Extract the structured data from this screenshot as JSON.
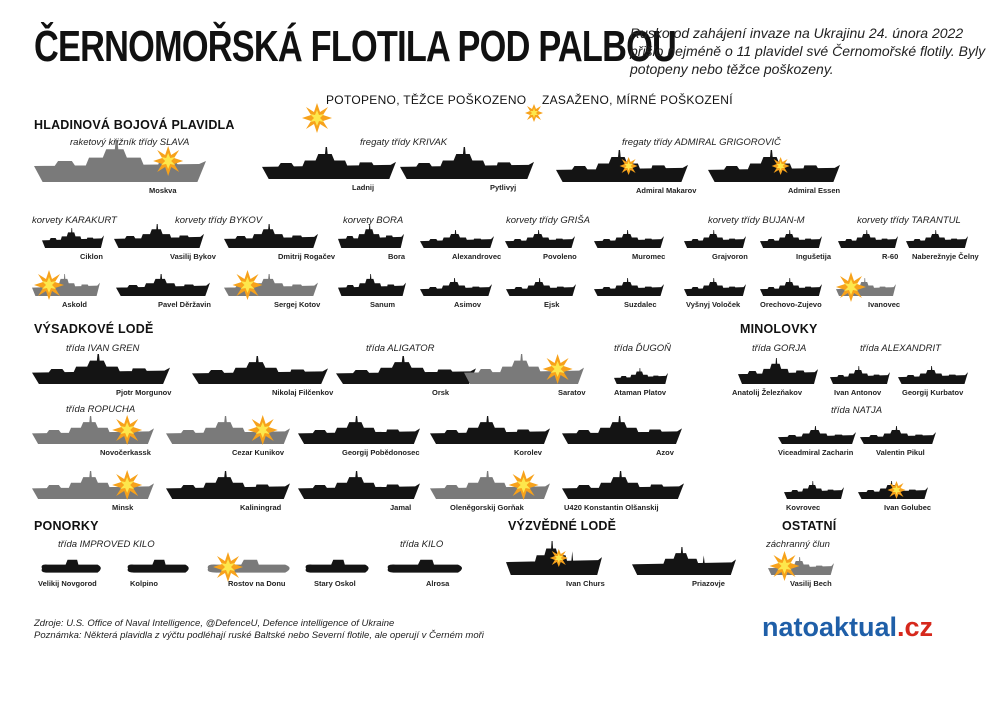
{
  "title": "ČERNOMOŘSKÁ FLOTILA POD PALBOU",
  "intro": "Rusko od zahájení invaze na Ukrajinu 24. února 2022 přišlo nejméně o 11 plavidel své Černomořské flotily. Byly potopeny nebo těžce poškozeny.",
  "legend": {
    "sunk": "POTOPENO, TĚŽCE POŠKOZENO",
    "hit": "ZASAŽENO, MÍRNÉ POŠKOZENÍ"
  },
  "sections": {
    "surface": "HLADINOVÁ BOJOVÁ PLAVIDLA",
    "landing": "VÝSADKOVÉ LODĚ",
    "mine": "MINOLOVKY",
    "subs": "PONORKY",
    "recon": "VÝZVĚDNÉ LODĚ",
    "other": "OSTATNÍ"
  },
  "classes": {
    "slava": "raketový křižník třídy SLAVA",
    "krivak": "fregaty třídy KRIVAK",
    "grigorovic": "fregaty třídy ADMIRAL GRIGOROVIČ",
    "karakurt": "korvety KARAKURT",
    "bykov": "korvety třídy BYKOV",
    "bora": "korvety BORA",
    "grisa": "korvety třídy GRIŠA",
    "bujan": "korvety třídy BUJAN-M",
    "tarantul": "korvety třídy TARANTUL",
    "gren": "třída IVAN GREN",
    "aligator": "třída ALIGATOR",
    "dugon": "třída ĎUGOŇ",
    "ropucha": "třída ROPUCHA",
    "gorja": "třída GORJA",
    "alexandrit": "třída ALEXANDRIT",
    "natja": "třída NATJA",
    "kilo_imp": "třída IMPROVED KILO",
    "kilo": "třída KILO",
    "rescue": "záchranný člun"
  },
  "ships": [
    {
      "name": "Moskva",
      "status": "sunk"
    },
    {
      "name": "Ladnij",
      "status": "none"
    },
    {
      "name": "Pytlivyj",
      "status": "none"
    },
    {
      "name": "Admiral Makarov",
      "status": "hit"
    },
    {
      "name": "Admiral Essen",
      "status": "hit"
    },
    {
      "name": "Ciklon",
      "status": "none"
    },
    {
      "name": "Vasilij Bykov",
      "status": "none"
    },
    {
      "name": "Dmitrij Rogačev",
      "status": "none"
    },
    {
      "name": "Bora",
      "status": "none"
    },
    {
      "name": "Alexandrovec",
      "status": "none"
    },
    {
      "name": "Povoleno",
      "status": "none"
    },
    {
      "name": "Muromec",
      "status": "none"
    },
    {
      "name": "Grajvoron",
      "status": "none"
    },
    {
      "name": "Ingušetija",
      "status": "none"
    },
    {
      "name": "R-60",
      "status": "none"
    },
    {
      "name": "Naberežnyje Čelny",
      "status": "none"
    },
    {
      "name": "Askold",
      "status": "sunk"
    },
    {
      "name": "Pavel Děržavin",
      "status": "none"
    },
    {
      "name": "Sergej Kotov",
      "status": "sunk"
    },
    {
      "name": "Sanum",
      "status": "none"
    },
    {
      "name": "Asimov",
      "status": "none"
    },
    {
      "name": "Ejsk",
      "status": "none"
    },
    {
      "name": "Suzdalec",
      "status": "none"
    },
    {
      "name": "Vyšnyj Voloček",
      "status": "none"
    },
    {
      "name": "Orechovo-Zujevo",
      "status": "none"
    },
    {
      "name": "Ivanovec",
      "status": "sunk"
    },
    {
      "name": "Pjotr Morgunov",
      "status": "none"
    },
    {
      "name": "Nikolaj Filčenkov",
      "status": "none"
    },
    {
      "name": "Orsk",
      "status": "none"
    },
    {
      "name": "Saratov",
      "status": "sunk"
    },
    {
      "name": "Ataman Platov",
      "status": "none"
    },
    {
      "name": "Anatolij Železňakov",
      "status": "none"
    },
    {
      "name": "Ivan Antonov",
      "status": "none"
    },
    {
      "name": "Georgij Kurbatov",
      "status": "none"
    },
    {
      "name": "Novočerkassk",
      "status": "sunk"
    },
    {
      "name": "Cezar Kunikov",
      "status": "sunk"
    },
    {
      "name": "Georgij Pobědonosec",
      "status": "none"
    },
    {
      "name": "Korolev",
      "status": "none"
    },
    {
      "name": "Azov",
      "status": "none"
    },
    {
      "name": "Viceadmiral Zacharin",
      "status": "none"
    },
    {
      "name": "Valentin Pikul",
      "status": "none"
    },
    {
      "name": "Minsk",
      "status": "sunk"
    },
    {
      "name": "Kaliningrad",
      "status": "none"
    },
    {
      "name": "Jamal",
      "status": "none"
    },
    {
      "name": "Oleněgorskij Gorňak",
      "status": "sunk"
    },
    {
      "name": "U420 Konstantin Olšanskij",
      "status": "none"
    },
    {
      "name": "Kovrovec",
      "status": "none"
    },
    {
      "name": "Ivan Golubec",
      "status": "hit"
    },
    {
      "name": "Velikij Novgorod",
      "status": "none"
    },
    {
      "name": "Kolpino",
      "status": "none"
    },
    {
      "name": "Rostov na Donu",
      "status": "sunk"
    },
    {
      "name": "Stary Oskol",
      "status": "none"
    },
    {
      "name": "Alrosa",
      "status": "none"
    },
    {
      "name": "Ivan Churs",
      "status": "hit"
    },
    {
      "name": "Priazovje",
      "status": "none"
    },
    {
      "name": "Vasilij Bech",
      "status": "sunk"
    }
  ],
  "footer": {
    "source": "Zdroje: U.S. Office of Naval Intelligence, @DefenceU, Defence intelligence of Ukraine",
    "note": "Poznámka: Některá plavidla z výčtu podléhají ruské Baltské nebo Severní flotile, ale operují v Černém moři"
  },
  "brand": {
    "main": "natoaktual",
    "suffix": ".cz"
  },
  "colors": {
    "intact": "#141414",
    "damaged": "#7a7a7a",
    "burst_outer": "#f7a21b",
    "burst_inner": "#fde74c",
    "brand_blue": "#1f5fa8",
    "brand_red": "#d6281c"
  }
}
